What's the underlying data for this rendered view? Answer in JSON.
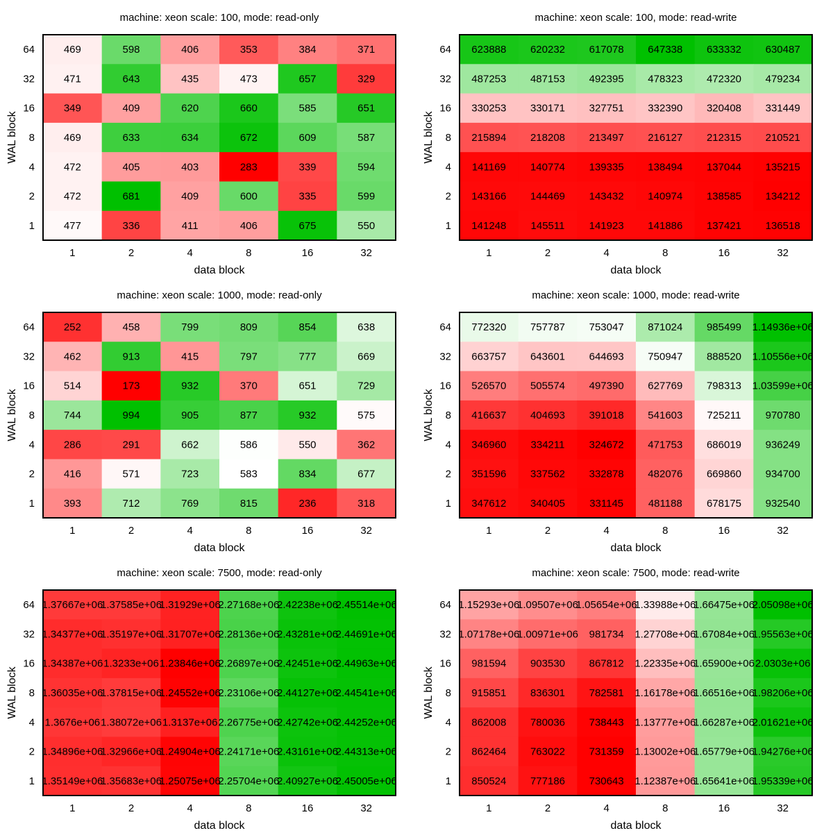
{
  "colors": {
    "low": "#ff0000",
    "mid": "#ffffff",
    "high": "#00c000",
    "frame": "#000000"
  },
  "chart_data": [
    {
      "type": "heatmap",
      "title": "machine: xeon scale: 100, mode: read-only",
      "xlabel": "data block",
      "ylabel": "WAL block",
      "x_categories": [
        "1",
        "2",
        "4",
        "8",
        "16",
        "32"
      ],
      "y_categories": [
        "64",
        "32",
        "16",
        "8",
        "4",
        "2",
        "1"
      ],
      "values": [
        [
          469,
          598,
          406,
          353,
          384,
          371
        ],
        [
          471,
          643,
          435,
          473,
          657,
          329
        ],
        [
          349,
          409,
          620,
          660,
          585,
          651
        ],
        [
          469,
          633,
          634,
          672,
          609,
          587
        ],
        [
          472,
          405,
          403,
          283,
          339,
          594
        ],
        [
          472,
          681,
          409,
          600,
          335,
          599
        ],
        [
          477,
          336,
          411,
          406,
          675,
          550
        ]
      ],
      "labels": [
        [
          "469",
          "598",
          "406",
          "353",
          "384",
          "371"
        ],
        [
          "471",
          "643",
          "435",
          "473",
          "657",
          "329"
        ],
        [
          "349",
          "409",
          "620",
          "660",
          "585",
          "651"
        ],
        [
          "469",
          "633",
          "634",
          "672",
          "609",
          "587"
        ],
        [
          "472",
          "405",
          "403",
          "283",
          "339",
          "594"
        ],
        [
          "472",
          "681",
          "409",
          "600",
          "335",
          "599"
        ],
        [
          "477",
          "336",
          "411",
          "406",
          "675",
          "550"
        ]
      ]
    },
    {
      "type": "heatmap",
      "title": "machine: xeon scale: 100, mode: read-write",
      "xlabel": "data block",
      "ylabel": "WAL block",
      "x_categories": [
        "1",
        "2",
        "4",
        "8",
        "16",
        "32"
      ],
      "y_categories": [
        "64",
        "32",
        "16",
        "8",
        "4",
        "2",
        "1"
      ],
      "values": [
        [
          623888,
          620232,
          617078,
          647338,
          633332,
          630487
        ],
        [
          487253,
          487153,
          492395,
          478323,
          472320,
          479234
        ],
        [
          330253,
          330171,
          327751,
          332390,
          320408,
          331449
        ],
        [
          215894,
          218208,
          213497,
          216127,
          212315,
          210521
        ],
        [
          141169,
          140774,
          139335,
          138494,
          137044,
          135215
        ],
        [
          143166,
          144469,
          143432,
          140974,
          138585,
          134212
        ],
        [
          141248,
          145511,
          141923,
          141886,
          137421,
          136518
        ]
      ],
      "labels": [
        [
          "623888",
          "620232",
          "617078",
          "647338",
          "633332",
          "630487"
        ],
        [
          "487253",
          "487153",
          "492395",
          "478323",
          "472320",
          "479234"
        ],
        [
          "330253",
          "330171",
          "327751",
          "332390",
          "320408",
          "331449"
        ],
        [
          "215894",
          "218208",
          "213497",
          "216127",
          "212315",
          "210521"
        ],
        [
          "141169",
          "140774",
          "139335",
          "138494",
          "137044",
          "135215"
        ],
        [
          "143166",
          "144469",
          "143432",
          "140974",
          "138585",
          "134212"
        ],
        [
          "141248",
          "145511",
          "141923",
          "141886",
          "137421",
          "136518"
        ]
      ]
    },
    {
      "type": "heatmap",
      "title": "machine: xeon scale: 1000, mode: read-only",
      "xlabel": "data block",
      "ylabel": "WAL block",
      "x_categories": [
        "1",
        "2",
        "4",
        "8",
        "16",
        "32"
      ],
      "y_categories": [
        "64",
        "32",
        "16",
        "8",
        "4",
        "2",
        "1"
      ],
      "values": [
        [
          252,
          458,
          799,
          809,
          854,
          638
        ],
        [
          462,
          913,
          415,
          797,
          777,
          669
        ],
        [
          514,
          173,
          932,
          370,
          651,
          729
        ],
        [
          744,
          994,
          905,
          877,
          932,
          575
        ],
        [
          286,
          291,
          662,
          586,
          550,
          362
        ],
        [
          416,
          571,
          723,
          583,
          834,
          677
        ],
        [
          393,
          712,
          769,
          815,
          236,
          318
        ]
      ],
      "labels": [
        [
          "252",
          "458",
          "799",
          "809",
          "854",
          "638"
        ],
        [
          "462",
          "913",
          "415",
          "797",
          "777",
          "669"
        ],
        [
          "514",
          "173",
          "932",
          "370",
          "651",
          "729"
        ],
        [
          "744",
          "994",
          "905",
          "877",
          "932",
          "575"
        ],
        [
          "286",
          "291",
          "662",
          "586",
          "550",
          "362"
        ],
        [
          "416",
          "571",
          "723",
          "583",
          "834",
          "677"
        ],
        [
          "393",
          "712",
          "769",
          "815",
          "236",
          "318"
        ]
      ]
    },
    {
      "type": "heatmap",
      "title": "machine: xeon scale: 1000, mode: read-write",
      "xlabel": "data block",
      "ylabel": "WAL block",
      "x_categories": [
        "1",
        "2",
        "4",
        "8",
        "16",
        "32"
      ],
      "y_categories": [
        "64",
        "32",
        "16",
        "8",
        "4",
        "2",
        "1"
      ],
      "values": [
        [
          772320,
          757787,
          753047,
          871024,
          985499,
          1149360
        ],
        [
          663757,
          643601,
          644693,
          750947,
          888520,
          1105560
        ],
        [
          526570,
          505574,
          497390,
          627769,
          798313,
          1035990
        ],
        [
          416637,
          404693,
          391018,
          541603,
          725211,
          970780
        ],
        [
          346960,
          334211,
          324672,
          471753,
          686019,
          936249
        ],
        [
          351596,
          337562,
          332878,
          482076,
          669860,
          934700
        ],
        [
          347612,
          340405,
          331145,
          481188,
          678175,
          932540
        ]
      ],
      "labels": [
        [
          "772320",
          "757787",
          "753047",
          "871024",
          "985499",
          "1.14936e+06"
        ],
        [
          "663757",
          "643601",
          "644693",
          "750947",
          "888520",
          "1.10556e+06"
        ],
        [
          "526570",
          "505574",
          "497390",
          "627769",
          "798313",
          "1.03599e+06"
        ],
        [
          "416637",
          "404693",
          "391018",
          "541603",
          "725211",
          "970780"
        ],
        [
          "346960",
          "334211",
          "324672",
          "471753",
          "686019",
          "936249"
        ],
        [
          "351596",
          "337562",
          "332878",
          "482076",
          "669860",
          "934700"
        ],
        [
          "347612",
          "340405",
          "331145",
          "481188",
          "678175",
          "932540"
        ]
      ]
    },
    {
      "type": "heatmap",
      "title": "machine: xeon scale: 7500, mode: read-only",
      "xlabel": "data block",
      "ylabel": "WAL block",
      "x_categories": [
        "1",
        "2",
        "4",
        "8",
        "16",
        "32"
      ],
      "y_categories": [
        "64",
        "32",
        "16",
        "8",
        "4",
        "2",
        "1"
      ],
      "values": [
        [
          1376670,
          1375850,
          1319290,
          2271680,
          2422380,
          2455140
        ],
        [
          1343770,
          1351970,
          1317070,
          2281360,
          2432810,
          2446910
        ],
        [
          1343870,
          1323300,
          1238460,
          2268970,
          2424510,
          2449630
        ],
        [
          1360350,
          1378150,
          1245520,
          2231060,
          2441270,
          2445410
        ],
        [
          1367600,
          1380720,
          1313700,
          2267750,
          2427420,
          2442520
        ],
        [
          1348960,
          1329660,
          1249040,
          2241710,
          2431610,
          2443130
        ],
        [
          1351490,
          1356830,
          1250750,
          2257040,
          2409270,
          2450050
        ]
      ],
      "labels": [
        [
          "1.37667e+06",
          "1.37585e+06",
          "1.31929e+06",
          "2.27168e+06",
          "2.42238e+06",
          "2.45514e+06"
        ],
        [
          "1.34377e+06",
          "1.35197e+06",
          "1.31707e+06",
          "2.28136e+06",
          "2.43281e+06",
          "2.44691e+06"
        ],
        [
          "1.34387e+06",
          "1.3233e+06",
          "1.23846e+06",
          "2.26897e+06",
          "2.42451e+06",
          "2.44963e+06"
        ],
        [
          "1.36035e+06",
          "1.37815e+06",
          "1.24552e+06",
          "2.23106e+06",
          "2.44127e+06",
          "2.44541e+06"
        ],
        [
          "1.3676e+06",
          "1.38072e+06",
          "1.3137e+06",
          "2.26775e+06",
          "2.42742e+06",
          "2.44252e+06"
        ],
        [
          "1.34896e+06",
          "1.32966e+06",
          "1.24904e+06",
          "2.24171e+06",
          "2.43161e+06",
          "2.44313e+06"
        ],
        [
          "1.35149e+06",
          "1.35683e+06",
          "1.25075e+06",
          "2.25704e+06",
          "2.40927e+06",
          "2.45005e+06"
        ]
      ]
    },
    {
      "type": "heatmap",
      "title": "machine: xeon scale: 7500, mode: read-write",
      "xlabel": "data block",
      "ylabel": "WAL block",
      "x_categories": [
        "1",
        "2",
        "4",
        "8",
        "16",
        "32"
      ],
      "y_categories": [
        "64",
        "32",
        "16",
        "8",
        "4",
        "2",
        "1"
      ],
      "values": [
        [
          1152930,
          1095070,
          1056540,
          1339880,
          1664753,
          2050980
        ],
        [
          1071780,
          1009710,
          981734,
          1277080,
          1670843,
          1955630
        ],
        [
          981594,
          903530,
          867812,
          1223350,
          1658997,
          2030300
        ],
        [
          915851,
          836301,
          782581,
          1161780,
          1665164,
          1982060
        ],
        [
          862008,
          780036,
          738443,
          1137770,
          1662874,
          2016210
        ],
        [
          862464,
          763022,
          731359,
          1130020,
          1657793,
          1942760
        ],
        [
          850524,
          777186,
          730643,
          1123870,
          1656408,
          1953390
        ]
      ],
      "labels": [
        [
          "1.15293e+06",
          "1.09507e+06",
          "1.05654e+06",
          "1.33988e+06",
          "1.66475e+06",
          "2.05098e+06"
        ],
        [
          "1.07178e+06",
          "1.00971e+06",
          "981734",
          "1.27708e+06",
          "1.67084e+06",
          "1.95563e+06"
        ],
        [
          "981594",
          "903530",
          "867812",
          "1.22335e+06",
          "1.65900e+06",
          "2.0303e+06"
        ],
        [
          "915851",
          "836301",
          "782581",
          "1.16178e+06",
          "1.66516e+06",
          "1.98206e+06"
        ],
        [
          "862008",
          "780036",
          "738443",
          "1.13777e+06",
          "1.66287e+06",
          "2.01621e+06"
        ],
        [
          "862464",
          "763022",
          "731359",
          "1.13002e+06",
          "1.65779e+06",
          "1.94276e+06"
        ],
        [
          "850524",
          "777186",
          "730643",
          "1.12387e+06",
          "1.65641e+06",
          "1.95339e+06"
        ]
      ]
    }
  ]
}
